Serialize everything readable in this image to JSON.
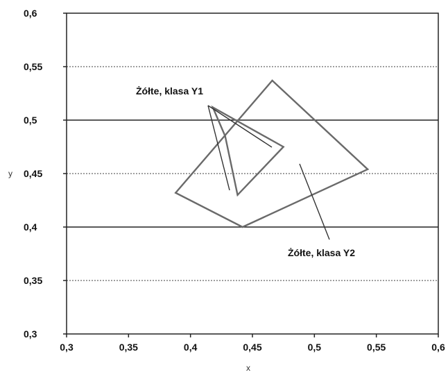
{
  "chart_data": {
    "type": "line",
    "title": "",
    "xlabel": "x",
    "ylabel": "y",
    "xlim": [
      0.3,
      0.6
    ],
    "ylim": [
      0.3,
      0.6
    ],
    "x_tick_labels": [
      "0,3",
      "0,35",
      "0,4",
      "0,45",
      "0,5",
      "0,55",
      "0,6"
    ],
    "y_tick_labels": [
      "0,3",
      "0,35",
      "0,4",
      "0,45",
      "0,5",
      "0,55",
      "0,6"
    ],
    "x_ticks": [
      0.3,
      0.35,
      0.4,
      0.45,
      0.5,
      0.55,
      0.6
    ],
    "y_ticks": [
      0.3,
      0.35,
      0.4,
      0.45,
      0.5,
      0.55,
      0.6
    ],
    "grid": "horizontal",
    "series": [
      {
        "name": "Żółte, klasa Y1",
        "closed": true,
        "x": [
          0.418,
          0.475,
          0.438,
          0.428
        ],
        "y": [
          0.512,
          0.475,
          0.43,
          0.485
        ]
      },
      {
        "name": "Żółte, klasa Y2",
        "closed": true,
        "x": [
          0.466,
          0.543,
          0.442,
          0.388
        ],
        "y": [
          0.537,
          0.454,
          0.4,
          0.432
        ]
      }
    ],
    "annotations": [
      {
        "text": "Żółte, klasa Y1",
        "target": [
          0.418,
          0.512
        ]
      },
      {
        "text": "Żółte, klasa Y2",
        "target": [
          0.495,
          0.463
        ]
      }
    ]
  }
}
